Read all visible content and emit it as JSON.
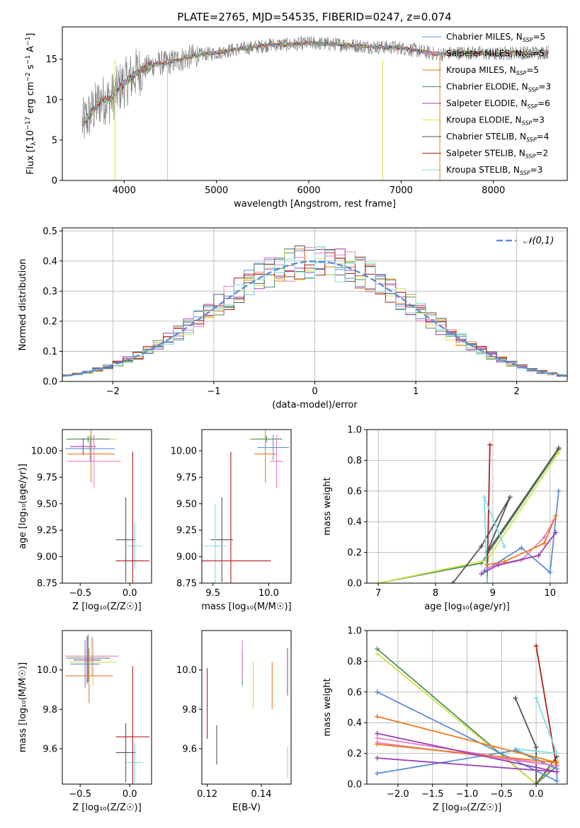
{
  "figure_title": "PLATE=2765, MJD=54535, FIBERID=0247, z=0.074",
  "colors": {
    "Chabrier MILES": "#5b8fd8",
    "Salpeter MILES": "#e97fc4",
    "Kroupa MILES": "#f07a1c",
    "Chabrier ELODIE": "#4f8f5f",
    "Salpeter ELODIE": "#9a3fb8",
    "Kroupa ELODIE": "#d4e44a",
    "Chabrier STELIB": "#555555",
    "Salpeter STELIB": "#b21e1e",
    "Kroupa STELIB": "#7fdde0",
    "data": "#808080",
    "normal": "#5b8fd8"
  },
  "chart_data": [
    {
      "id": "spectrum",
      "type": "line",
      "xlabel": "wavelength [Angstrom, rest frame]",
      "ylabel_main": "Flux [f",
      "ylabel_sub": "λ",
      "ylabel_rest": "10",
      "ylabel_exp1": "−17",
      "ylabel_units": " erg cm",
      "ylabel_exp2": "−2",
      "ylabel_s": " s",
      "ylabel_exp3": "−1",
      "ylabel_a": " A",
      "ylabel_exp4": "−1",
      "ylabel_end": "]",
      "xlim": [
        3330,
        8800
      ],
      "ylim": [
        0,
        19
      ],
      "xticks": [
        4000,
        5000,
        6000,
        7000,
        8000
      ],
      "yticks": [
        0,
        5,
        10,
        15
      ],
      "continuum": {
        "x": [
          3550,
          3650,
          3750,
          3850,
          3950,
          4050,
          4150,
          4250,
          4350,
          4450,
          4550,
          4650,
          4800,
          5000,
          5200,
          5400,
          5600,
          5800,
          6000,
          6200,
          6400,
          6600,
          6800,
          7000,
          7200,
          7400,
          7600,
          7800,
          8000,
          8200,
          8400,
          8600
        ],
        "y": [
          7.0,
          8.5,
          10.0,
          10.0,
          11.5,
          12.5,
          13.5,
          14.0,
          14.5,
          14.5,
          14.8,
          15.1,
          15.5,
          15.8,
          16.2,
          16.5,
          16.8,
          16.8,
          17.0,
          16.9,
          16.8,
          16.6,
          16.5,
          16.4,
          16.0,
          15.6,
          15.8,
          15.8,
          15.6,
          15.8,
          15.8,
          15.9
        ]
      },
      "legend": [
        {
          "name": "Chabrier MILES",
          "label": "Chabrier MILES, N",
          "sub": "SSP",
          "value": "=5"
        },
        {
          "name": "Salpeter MILES",
          "label": "Salpeter MILES, N",
          "sub": "SSP",
          "value": "=5"
        },
        {
          "name": "Kroupa MILES",
          "label": "Kroupa MILES, N",
          "sub": "SSP",
          "value": "=5"
        },
        {
          "name": "Chabrier ELODIE",
          "label": "Chabrier ELODIE, N",
          "sub": "SSP",
          "value": "=3"
        },
        {
          "name": "Salpeter ELODIE",
          "label": "Salpeter ELODIE, N",
          "sub": "SSP",
          "value": "=6"
        },
        {
          "name": "Kroupa ELODIE",
          "label": "Kroupa ELODIE, N",
          "sub": "SSP",
          "value": "=3"
        },
        {
          "name": "Chabrier STELIB",
          "label": "Chabrier STELIB, N",
          "sub": "SSP",
          "value": "=4"
        },
        {
          "name": "Salpeter STELIB",
          "label": "Salpeter STELIB, N",
          "sub": "SSP",
          "value": "=2"
        },
        {
          "name": "Kroupa STELIB",
          "label": "Kroupa STELIB, N",
          "sub": "SSP",
          "value": "=3"
        }
      ],
      "dropouts": [
        {
          "series": "Kroupa ELODIE",
          "x": [
            3900,
            3900
          ]
        },
        {
          "series": "Kroupa STELIB",
          "x": [
            4470,
            4470
          ]
        },
        {
          "series": "Kroupa ELODIE",
          "x": [
            6800,
            6800
          ]
        },
        {
          "series": "Kroupa MILES",
          "x": [
            7420,
            7420
          ]
        }
      ]
    },
    {
      "id": "residuals",
      "type": "step",
      "xlabel": "(data-model)/error",
      "ylabel": "Normed distribution",
      "xlim": [
        -2.5,
        2.5
      ],
      "ylim": [
        0,
        0.51
      ],
      "xticks": [
        -2,
        -1,
        0,
        1,
        2
      ],
      "xticklabels": [
        "−2",
        "−1",
        "0",
        "1",
        "2"
      ],
      "yticks": [
        0.0,
        0.1,
        0.2,
        0.3,
        0.4,
        0.5
      ],
      "yticklabels": [
        "0.0",
        "0.1",
        "0.2",
        "0.3",
        "0.4",
        "0.5"
      ],
      "legend_label": "𝒩(0,1)",
      "grid": true,
      "legend_position": "top-right"
    },
    {
      "id": "age_vs_Z",
      "type": "errorbar",
      "xlabel": "Z [log₁₀(Z/Z☉)]",
      "ylabel": "age  [log₁₀(age/yr)]",
      "xlim": [
        -0.68,
        0.22
      ],
      "ylim": [
        8.75,
        10.2
      ],
      "xticks": [
        -0.5,
        0.0
      ],
      "xticklabels": [
        "−0.5",
        "0.0"
      ],
      "yticks": [
        8.75,
        9.0,
        9.25,
        9.5,
        9.75,
        10.0
      ],
      "yticklabels": [
        "8.75",
        "9.00",
        "9.25",
        "9.50",
        "9.75",
        "10.00"
      ],
      "points": [
        {
          "series": "Kroupa ELODIE",
          "x": -0.37,
          "xerr": 0.24,
          "y": 10.11,
          "yerr": 0.03
        },
        {
          "series": "Chabrier ELODIE",
          "x": -0.42,
          "xerr": 0.22,
          "y": 10.11,
          "yerr": 0.03
        },
        {
          "series": "Chabrier MILES",
          "x": -0.4,
          "xerr": 0.25,
          "y": 10.02,
          "yerr": 0.12
        },
        {
          "series": "Salpeter ELODIE",
          "x": -0.47,
          "xerr": 0.13,
          "y": 10.04,
          "yerr": 0.08
        },
        {
          "series": "Kroupa MILES",
          "x": -0.39,
          "xerr": 0.24,
          "y": 9.97,
          "yerr": 0.27
        },
        {
          "series": "Salpeter MILES",
          "x": -0.36,
          "xerr": 0.27,
          "y": 9.9,
          "yerr": 0.25
        },
        {
          "series": "Chabrier STELIB",
          "x": -0.04,
          "xerr": 0.1,
          "y": 9.16,
          "yerr": 0.4
        },
        {
          "series": "Kroupa STELIB",
          "x": 0.05,
          "xerr": 0.08,
          "y": 9.1,
          "yerr": 0.22
        },
        {
          "series": "Salpeter STELIB",
          "x": 0.03,
          "xerr": 0.17,
          "y": 8.96,
          "yerr": 1.03
        }
      ]
    },
    {
      "id": "age_vs_mass",
      "type": "errorbar",
      "xlabel": "mass [log₁₀(M/M☉)]",
      "ylabel": "",
      "xlim": [
        9.4,
        10.2
      ],
      "ylim": [
        8.75,
        10.2
      ],
      "xticks": [
        9.5,
        10.0
      ],
      "xticklabels": [
        "9.5",
        "10.0"
      ],
      "yticks": [
        8.75,
        9.0,
        9.25,
        9.5,
        9.75,
        10.0
      ],
      "yticklabels": [
        "8.75",
        "9.00",
        "9.25",
        "9.50",
        "9.75",
        "10.00"
      ],
      "points": [
        {
          "series": "Kroupa ELODIE",
          "x": 9.97,
          "xerr": 0.15,
          "y": 10.11,
          "yerr": 0.03
        },
        {
          "series": "Chabrier ELODIE",
          "x": 9.98,
          "xerr": 0.14,
          "y": 10.11,
          "yerr": 0.03
        },
        {
          "series": "Chabrier MILES",
          "x": 10.04,
          "xerr": 0.14,
          "y": 10.03,
          "yerr": 0.12
        },
        {
          "series": "Kroupa MILES",
          "x": 9.97,
          "xerr": 0.1,
          "y": 9.97,
          "yerr": 0.27
        },
        {
          "series": "Salpeter MILES",
          "x": 10.07,
          "xerr": 0.06,
          "y": 9.9,
          "yerr": 0.25
        },
        {
          "series": "Chabrier STELIB",
          "x": 9.58,
          "xerr": 0.1,
          "y": 9.16,
          "yerr": 0.4
        },
        {
          "series": "Kroupa STELIB",
          "x": 9.52,
          "xerr": 0.1,
          "y": 9.1,
          "yerr": 0.4
        },
        {
          "series": "Salpeter STELIB",
          "x": 9.66,
          "xerr": 0.36,
          "y": 8.96,
          "yerr": 1.03
        }
      ]
    },
    {
      "id": "weight_vs_age",
      "type": "line",
      "xlabel": "age  [log₁₀(age/yr)]",
      "ylabel": "mass weight",
      "xlim": [
        6.8,
        10.3
      ],
      "ylim": [
        0,
        1.0
      ],
      "xticks": [
        7,
        8,
        9,
        10
      ],
      "yticks": [
        0.0,
        0.2,
        0.4,
        0.6,
        0.8,
        1.0
      ],
      "yticklabels": [
        "0.0",
        "0.2",
        "0.4",
        "0.6",
        "0.8",
        "1.0"
      ],
      "grid": true,
      "series": [
        {
          "name": "Chabrier ELODIE",
          "points": [
            [
              7.0,
              0.0
            ],
            [
              8.8,
              0.13
            ],
            [
              10.15,
              0.87
            ]
          ]
        },
        {
          "name": "Kroupa ELODIE",
          "points": [
            [
              7.0,
              0.0
            ],
            [
              8.9,
              0.15
            ],
            [
              10.15,
              0.85
            ]
          ]
        },
        {
          "name": "Chabrier STELIB",
          "points": [
            [
              8.3,
              0.0
            ],
            [
              8.8,
              0.24
            ],
            [
              9.3,
              0.56
            ],
            [
              8.9,
              0.2
            ],
            [
              10.15,
              0.88
            ]
          ]
        },
        {
          "name": "Salpeter STELIB",
          "points": [
            [
              8.9,
              0.0
            ],
            [
              8.95,
              0.9
            ]
          ]
        },
        {
          "name": "Kroupa STELIB",
          "points": [
            [
              8.9,
              0.0
            ],
            [
              8.85,
              0.56
            ],
            [
              9.2,
              0.24
            ]
          ]
        },
        {
          "name": "Chabrier MILES",
          "points": [
            [
              8.85,
              0.08
            ],
            [
              9.5,
              0.23
            ],
            [
              10.0,
              0.07
            ],
            [
              10.15,
              0.6
            ]
          ]
        },
        {
          "name": "Salpeter MILES",
          "points": [
            [
              8.9,
              0.1
            ],
            [
              9.5,
              0.15
            ],
            [
              9.9,
              0.3
            ],
            [
              10.05,
              0.4
            ]
          ]
        },
        {
          "name": "Kroupa MILES",
          "points": [
            [
              8.9,
              0.12
            ],
            [
              9.2,
              0.14
            ],
            [
              9.9,
              0.26
            ],
            [
              10.1,
              0.44
            ]
          ]
        },
        {
          "name": "Salpeter ELODIE",
          "points": [
            [
              8.8,
              0.06
            ],
            [
              9.1,
              0.12
            ],
            [
              9.8,
              0.18
            ],
            [
              10.1,
              0.33
            ]
          ]
        }
      ]
    },
    {
      "id": "mass_vs_Z",
      "type": "errorbar",
      "xlabel": "Z [log₁₀(Z/Z☉)]",
      "ylabel": "mass [log₁₀(M/M☉)]",
      "xlim": [
        -0.68,
        0.22
      ],
      "ylim": [
        9.42,
        10.2
      ],
      "xticks": [
        -0.5,
        0.0
      ],
      "xticklabels": [
        "−0.5",
        "0.0"
      ],
      "yticks": [
        9.6,
        9.8,
        10.0
      ],
      "yticklabels": [
        "9.6",
        "9.8",
        "10.0"
      ],
      "points": [
        {
          "series": "Kroupa ELODIE",
          "x": -0.37,
          "xerr": 0.24,
          "y": 10.04,
          "yerr": 0.12
        },
        {
          "series": "Chabrier ELODIE",
          "x": -0.42,
          "xerr": 0.22,
          "y": 10.06,
          "yerr": 0.12
        },
        {
          "series": "Salpeter MILES",
          "x": -0.38,
          "xerr": 0.27,
          "y": 10.07,
          "yerr": 0.1
        },
        {
          "series": "Chabrier MILES",
          "x": -0.45,
          "xerr": 0.15,
          "y": 10.03,
          "yerr": 0.12
        },
        {
          "series": "Salpeter ELODIE",
          "x": -0.43,
          "xerr": 0.14,
          "y": 10.05,
          "yerr": 0.12
        },
        {
          "series": "Kroupa MILES",
          "x": -0.41,
          "xerr": 0.24,
          "y": 9.97,
          "yerr": 0.14
        },
        {
          "series": "Chabrier STELIB",
          "x": -0.04,
          "xerr": 0.1,
          "y": 9.58,
          "yerr": 0.15
        },
        {
          "series": "Kroupa STELIB",
          "x": 0.05,
          "xerr": 0.08,
          "y": 9.53,
          "yerr": 0.1
        },
        {
          "series": "Salpeter STELIB",
          "x": 0.03,
          "xerr": 0.17,
          "y": 9.66,
          "yerr": 0.36
        }
      ]
    },
    {
      "id": "mass_vs_ebv",
      "type": "errorbar",
      "xlabel": "E(B-V)",
      "ylabel": "",
      "xlim": [
        0.118,
        0.151
      ],
      "ylim": [
        9.42,
        10.2
      ],
      "xticks": [
        0.12,
        0.14
      ],
      "xticklabels": [
        "0.12",
        "0.14"
      ],
      "yticks": [
        9.6,
        9.8,
        10.0
      ],
      "yticklabels": [
        "9.6",
        "9.8",
        "10.0"
      ],
      "points": [
        {
          "series": "Salpeter STELIB",
          "x": 0.12,
          "y": 9.83,
          "yerr": 0.18
        },
        {
          "series": "Chabrier STELIB",
          "x": 0.1235,
          "y": 9.62,
          "yerr": 0.1
        },
        {
          "series": "Chabrier ELODIE",
          "x": 0.133,
          "y": 10.01,
          "yerr": 0.09
        },
        {
          "series": "Salpeter MILES",
          "x": 0.133,
          "y": 10.05,
          "yerr": 0.1
        },
        {
          "series": "Kroupa ELODIE",
          "x": 0.137,
          "y": 9.92,
          "yerr": 0.12
        },
        {
          "series": "Kroupa MILES",
          "x": 0.144,
          "y": 9.92,
          "yerr": 0.12
        },
        {
          "series": "Salpeter ELODIE",
          "x": 0.1497,
          "y": 9.99,
          "yerr": 0.12
        },
        {
          "series": "Kroupa STELIB",
          "x": 0.1497,
          "y": 9.53,
          "yerr": 0.08
        }
      ]
    },
    {
      "id": "weight_vs_Z",
      "type": "line",
      "xlabel": "Z [log₁₀(Z/Z☉)]",
      "ylabel": "mass weight",
      "xlim": [
        -2.45,
        0.45
      ],
      "ylim": [
        0,
        1.0
      ],
      "xticks": [
        -2.0,
        -1.5,
        -1.0,
        -0.5,
        0.0
      ],
      "xticklabels": [
        "−2.0",
        "−1.5",
        "−1.0",
        "−0.5",
        "0.0"
      ],
      "yticks": [
        0.0,
        0.2,
        0.4,
        0.6,
        0.8,
        1.0
      ],
      "yticklabels": [
        "0.0",
        "0.2",
        "0.4",
        "0.6",
        "0.8",
        "1.0"
      ],
      "grid": true,
      "series": [
        {
          "name": "Chabrier ELODIE",
          "points": [
            [
              -2.3,
              0.88
            ],
            [
              0.0,
              0.0
            ],
            [
              0.3,
              0.12
            ]
          ]
        },
        {
          "name": "Kroupa ELODIE",
          "points": [
            [
              -2.3,
              0.85
            ],
            [
              0.0,
              0.0
            ],
            [
              0.3,
              0.15
            ]
          ]
        },
        {
          "name": "Chabrier STELIB",
          "points": [
            [
              -0.3,
              0.56
            ],
            [
              0.0,
              0.24
            ],
            [
              0.0,
              0.0
            ],
            [
              0.3,
              0.18
            ]
          ]
        },
        {
          "name": "Salpeter STELIB",
          "points": [
            [
              0.0,
              0.9
            ],
            [
              0.3,
              0.1
            ]
          ]
        },
        {
          "name": "Kroupa STELIB",
          "points": [
            [
              0.0,
              0.56
            ],
            [
              0.3,
              0.2
            ],
            [
              -0.3,
              0.23
            ],
            [
              0.3,
              0.1
            ]
          ]
        },
        {
          "name": "Chabrier MILES",
          "points": [
            [
              -2.3,
              0.07
            ],
            [
              -0.3,
              0.22
            ],
            [
              0.3,
              0.1
            ],
            [
              0.3,
              0.02
            ],
            [
              -2.3,
              0.6
            ]
          ]
        },
        {
          "name": "Salpeter MILES",
          "points": [
            [
              -2.3,
              0.27
            ],
            [
              0.3,
              0.12
            ],
            [
              -2.3,
              0.3
            ]
          ]
        },
        {
          "name": "Kroupa MILES",
          "points": [
            [
              -2.3,
              0.26
            ],
            [
              0.3,
              0.14
            ],
            [
              -2.3,
              0.44
            ]
          ]
        },
        {
          "name": "Salpeter ELODIE",
          "points": [
            [
              -2.3,
              0.17
            ],
            [
              0.3,
              0.08
            ],
            [
              -2.3,
              0.33
            ]
          ]
        }
      ]
    }
  ]
}
